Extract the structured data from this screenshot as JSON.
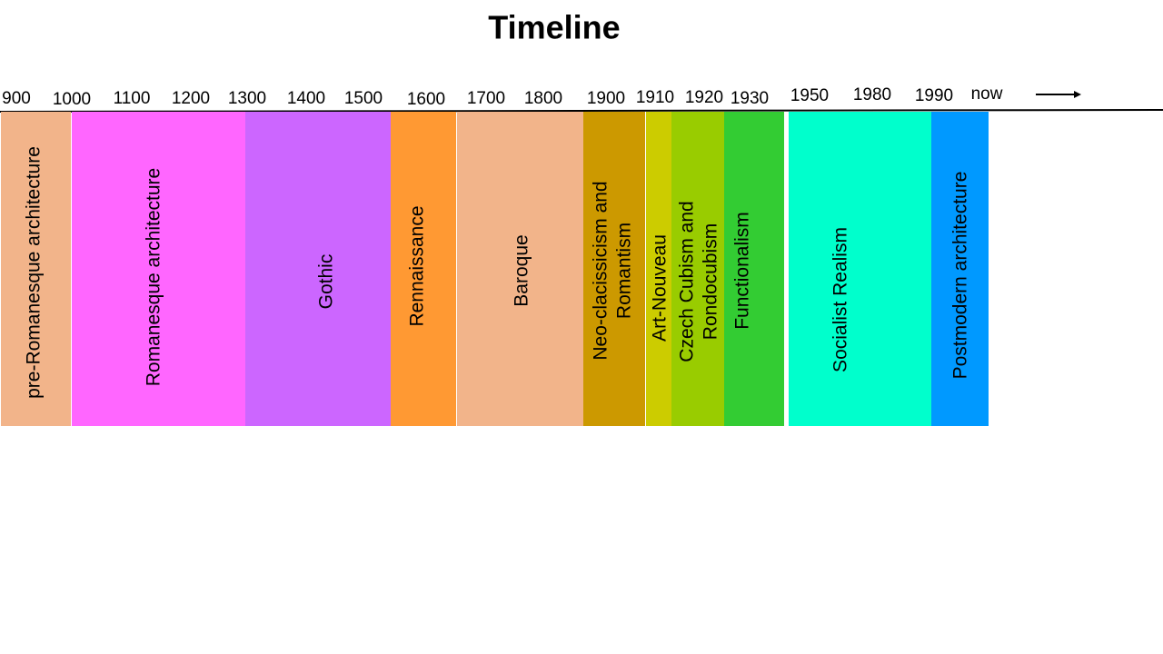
{
  "title": "Timeline",
  "years": [
    "900",
    "1000",
    "1100",
    "1200",
    "1300",
    "1400",
    "1500",
    "1600",
    "1700",
    "1800",
    "1900",
    "1910",
    "1920",
    "1930",
    "1950",
    "1980",
    "1990",
    "now"
  ],
  "periods": [
    {
      "lines": [
        "pre-Romanesque architecture"
      ],
      "color": "#f2b48a"
    },
    {
      "lines": [
        "Romanesque architecture"
      ],
      "color": "#ff66ff"
    },
    {
      "lines": [
        "Gothic"
      ],
      "color": "#cc66ff"
    },
    {
      "lines": [
        "Rennaissance"
      ],
      "color": "#ff9933"
    },
    {
      "lines": [
        "Baroque"
      ],
      "color": "#f2b48a"
    },
    {
      "lines": [
        "Neo-clacissicism and",
        "Romantism"
      ],
      "color": "#cc9900"
    },
    {
      "lines": [
        "Art-Nouveau"
      ],
      "color": "#cccc00"
    },
    {
      "lines": [
        "Czech Cubism and",
        "Rondocubism"
      ],
      "color": "#99cc00"
    },
    {
      "lines": [
        "Functionalism"
      ],
      "color": "#33cc33"
    },
    {
      "lines": [
        "Socialist Realism"
      ],
      "color": "#00ffcc"
    },
    {
      "lines": [
        "Postmodern architecture"
      ],
      "color": "#0099ff"
    }
  ]
}
